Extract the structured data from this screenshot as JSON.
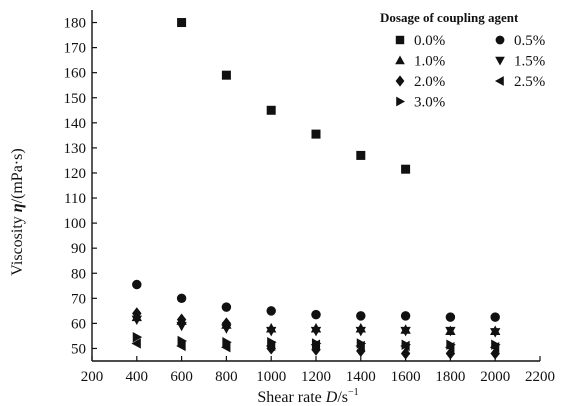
{
  "chart_data": {
    "type": "scatter",
    "title": "",
    "xlabel": "Shear rate D/s⁻¹",
    "xlabel_parts": {
      "text": "Shear rate ",
      "var": "D",
      "unit": "/s",
      "sup": "−1"
    },
    "ylabel": "Viscosity η/(mPa·s)",
    "ylabel_parts": {
      "text": "Viscosity ",
      "var": "η",
      "unit": "/(mPa·s)"
    },
    "xlim": [
      200,
      2200
    ],
    "ylim": [
      45,
      185
    ],
    "xticks": [
      200,
      400,
      600,
      800,
      1000,
      1200,
      1400,
      1600,
      1800,
      2000,
      2200
    ],
    "yticks": [
      50,
      60,
      70,
      80,
      90,
      100,
      110,
      120,
      130,
      140,
      150,
      160,
      170,
      180
    ],
    "grid": false,
    "legend": {
      "title": "Dosage of coupling agent",
      "placement": "top-right",
      "columns": 2
    },
    "series": [
      {
        "name": "0.0%",
        "marker": "square",
        "x": [
          600,
          800,
          1000,
          1200,
          1400,
          1600
        ],
        "y": [
          180,
          159,
          145,
          135.5,
          127,
          121.5
        ]
      },
      {
        "name": "0.5%",
        "marker": "circle",
        "x": [
          400,
          600,
          800,
          1000,
          1200,
          1400,
          1600,
          1800,
          2000
        ],
        "y": [
          75.5,
          70,
          66.5,
          65,
          63.5,
          63,
          63,
          62.5,
          62.5
        ]
      },
      {
        "name": "1.0%",
        "marker": "triangle-up",
        "x": [
          400,
          600,
          800,
          1000,
          1200,
          1400,
          1600,
          1800,
          2000
        ],
        "y": [
          62.5,
          61,
          59.5,
          58,
          58,
          58,
          57.5,
          57,
          57
        ]
      },
      {
        "name": "1.5%",
        "marker": "triangle-down",
        "x": [
          400,
          600,
          800,
          1000,
          1200,
          1400,
          1600,
          1800,
          2000
        ],
        "y": [
          61.5,
          59,
          58,
          57,
          57,
          57,
          57,
          57,
          56.5
        ]
      },
      {
        "name": "2.0%",
        "marker": "diamond",
        "x": [
          400,
          600,
          800,
          1000,
          1200,
          1400,
          1600,
          1800,
          2000
        ],
        "y": [
          64,
          61.5,
          60,
          50,
          49.5,
          49,
          48,
          48,
          48
        ]
      },
      {
        "name": "2.5%",
        "marker": "triangle-left",
        "x": [
          400,
          600,
          800,
          1000,
          1200,
          1400,
          1600,
          1800,
          2000
        ],
        "y": [
          52,
          51,
          50.5,
          51,
          51.5,
          51,
          51,
          50.5,
          50.5
        ]
      },
      {
        "name": "3.0%",
        "marker": "triangle-right",
        "x": [
          400,
          600,
          800,
          1000,
          1200,
          1400,
          1600,
          1800,
          2000
        ],
        "y": [
          54.5,
          53,
          52.5,
          52.5,
          52,
          52,
          51.5,
          51.5,
          51.5
        ]
      }
    ]
  }
}
